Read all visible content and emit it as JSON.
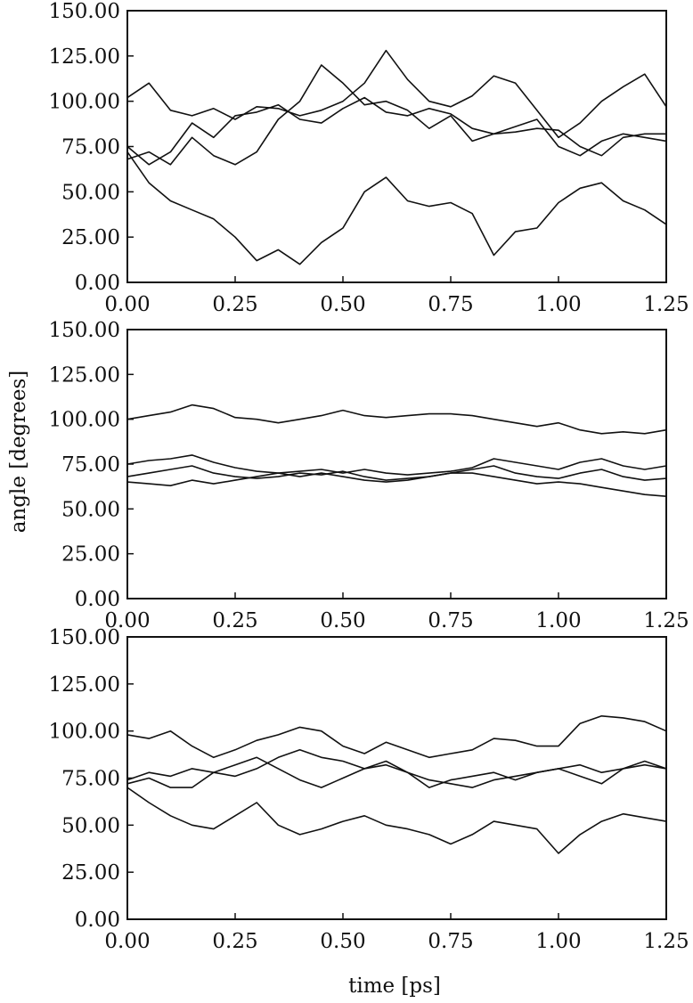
{
  "chart_data": [
    {
      "type": "line",
      "panel": "top",
      "xlabel": "",
      "ylabel": "",
      "xlim": [
        0,
        1.25
      ],
      "ylim": [
        0,
        150
      ],
      "xticks": [
        "0.00",
        "0.25",
        "0.50",
        "0.75",
        "1.00",
        "1.25"
      ],
      "yticks": [
        "0.00",
        "25.00",
        "50.00",
        "75.00",
        "100.00",
        "125.00",
        "150.00"
      ],
      "grid": false,
      "x": [
        0,
        0.05,
        0.1,
        0.15,
        0.2,
        0.25,
        0.3,
        0.35,
        0.4,
        0.45,
        0.5,
        0.55,
        0.6,
        0.65,
        0.7,
        0.75,
        0.8,
        0.85,
        0.9,
        0.95,
        1.0,
        1.05,
        1.1,
        1.15,
        1.2,
        1.25
      ],
      "series": [
        {
          "values": [
            102,
            110,
            95,
            92,
            96,
            90,
            97,
            96,
            92,
            95,
            100,
            110,
            128,
            112,
            100,
            97,
            103,
            114,
            110,
            95,
            80,
            88,
            100,
            108,
            115,
            97
          ]
        },
        {
          "values": [
            75,
            65,
            72,
            88,
            80,
            92,
            94,
            98,
            90,
            88,
            96,
            102,
            94,
            92,
            96,
            93,
            85,
            82,
            83,
            85,
            84,
            75,
            70,
            80,
            82,
            82
          ]
        },
        {
          "values": [
            68,
            72,
            65,
            80,
            70,
            65,
            72,
            90,
            100,
            120,
            110,
            98,
            100,
            95,
            85,
            92,
            78,
            82,
            86,
            90,
            75,
            70,
            78,
            82,
            80,
            78
          ]
        },
        {
          "values": [
            72,
            55,
            45,
            40,
            35,
            25,
            12,
            18,
            10,
            22,
            30,
            50,
            58,
            45,
            42,
            44,
            38,
            15,
            28,
            30,
            44,
            52,
            55,
            45,
            40,
            32
          ]
        }
      ]
    },
    {
      "type": "line",
      "panel": "middle",
      "xlabel": "",
      "ylabel": "angle [degrees]",
      "xlim": [
        0,
        1.25
      ],
      "ylim": [
        0,
        150
      ],
      "xticks": [
        "0.00",
        "0.25",
        "0.50",
        "0.75",
        "1.00",
        "1.25"
      ],
      "yticks": [
        "0.00",
        "25.00",
        "50.00",
        "75.00",
        "100.00",
        "125.00",
        "150.00"
      ],
      "grid": false,
      "x": [
        0,
        0.05,
        0.1,
        0.15,
        0.2,
        0.25,
        0.3,
        0.35,
        0.4,
        0.45,
        0.5,
        0.55,
        0.6,
        0.65,
        0.7,
        0.75,
        0.8,
        0.85,
        0.9,
        0.95,
        1.0,
        1.05,
        1.1,
        1.15,
        1.2,
        1.25
      ],
      "series": [
        {
          "values": [
            100,
            102,
            104,
            108,
            106,
            101,
            100,
            98,
            100,
            102,
            105,
            102,
            101,
            102,
            103,
            103,
            102,
            100,
            98,
            96,
            98,
            94,
            92,
            93,
            92,
            94
          ]
        },
        {
          "values": [
            75,
            77,
            78,
            80,
            76,
            73,
            71,
            70,
            71,
            72,
            70,
            72,
            70,
            69,
            70,
            71,
            73,
            78,
            76,
            74,
            72,
            76,
            78,
            74,
            72,
            74
          ]
        },
        {
          "values": [
            68,
            70,
            72,
            74,
            70,
            68,
            67,
            68,
            70,
            69,
            71,
            68,
            66,
            67,
            68,
            70,
            72,
            74,
            70,
            68,
            67,
            70,
            72,
            68,
            66,
            67
          ]
        },
        {
          "values": [
            65,
            64,
            63,
            66,
            64,
            66,
            68,
            70,
            68,
            70,
            68,
            66,
            65,
            66,
            68,
            70,
            70,
            68,
            66,
            64,
            65,
            64,
            62,
            60,
            58,
            57
          ]
        }
      ]
    },
    {
      "type": "line",
      "panel": "bottom",
      "xlabel": "time [ps]",
      "ylabel": "",
      "xlim": [
        0,
        1.25
      ],
      "ylim": [
        0,
        150
      ],
      "xticks": [
        "0.00",
        "0.25",
        "0.50",
        "0.75",
        "1.00",
        "1.25"
      ],
      "yticks": [
        "0.00",
        "25.00",
        "50.00",
        "75.00",
        "100.00",
        "125.00",
        "150.00"
      ],
      "grid": false,
      "x": [
        0,
        0.05,
        0.1,
        0.15,
        0.2,
        0.25,
        0.3,
        0.35,
        0.4,
        0.45,
        0.5,
        0.55,
        0.6,
        0.65,
        0.7,
        0.75,
        0.8,
        0.85,
        0.9,
        0.95,
        1.0,
        1.05,
        1.1,
        1.15,
        1.2,
        1.25
      ],
      "series": [
        {
          "values": [
            98,
            96,
            100,
            92,
            86,
            90,
            95,
            98,
            102,
            100,
            92,
            88,
            94,
            90,
            86,
            88,
            90,
            96,
            95,
            92,
            92,
            104,
            108,
            107,
            105,
            100
          ]
        },
        {
          "values": [
            74,
            78,
            76,
            80,
            78,
            76,
            80,
            86,
            90,
            86,
            84,
            80,
            82,
            78,
            70,
            74,
            76,
            78,
            74,
            78,
            80,
            82,
            78,
            80,
            82,
            80
          ]
        },
        {
          "values": [
            72,
            75,
            70,
            70,
            78,
            82,
            86,
            80,
            74,
            70,
            75,
            80,
            84,
            78,
            74,
            72,
            70,
            74,
            76,
            78,
            80,
            76,
            72,
            80,
            84,
            80
          ]
        },
        {
          "values": [
            70,
            62,
            55,
            50,
            48,
            55,
            62,
            50,
            45,
            48,
            52,
            55,
            50,
            48,
            45,
            40,
            45,
            52,
            50,
            48,
            35,
            45,
            52,
            56,
            54,
            52
          ]
        }
      ]
    }
  ]
}
